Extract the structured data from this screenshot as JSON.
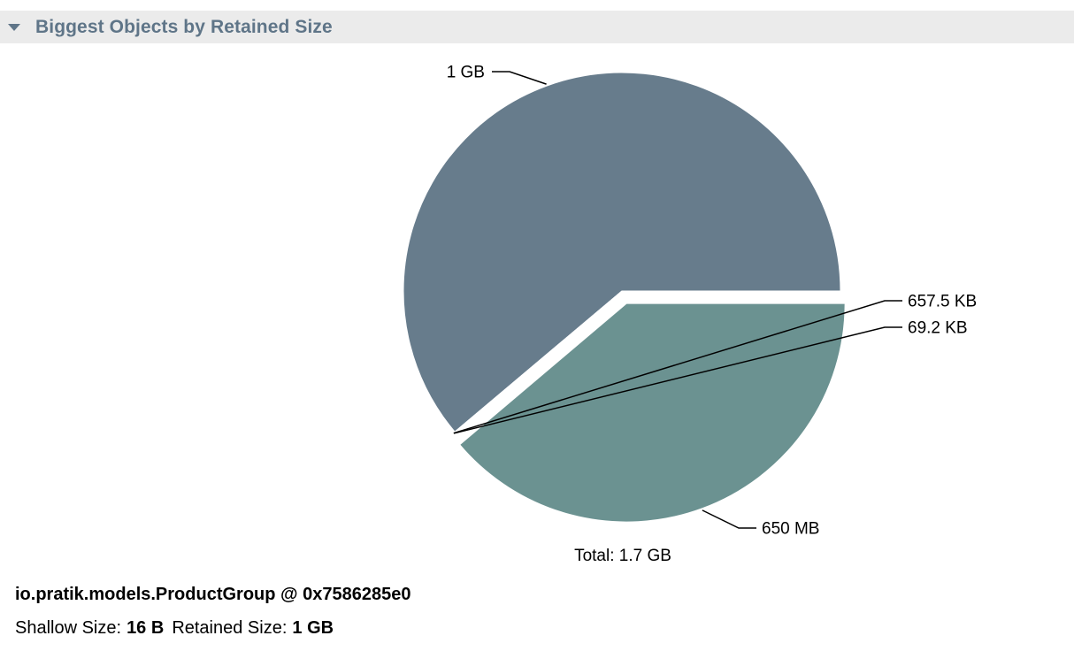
{
  "section": {
    "title": "Biggest Objects by Retained Size",
    "expanded": true,
    "toggle_icon": "triangle-down-icon"
  },
  "chart_data": {
    "type": "pie",
    "slices": [
      {
        "label": "1 GB",
        "value": 1024,
        "unit": "MB",
        "color": "#677c8c"
      },
      {
        "label": "657.5 KB",
        "value": 0.642,
        "unit": "MB",
        "color": "#9aa8b2"
      },
      {
        "label": "69.2 KB",
        "value": 0.068,
        "unit": "MB",
        "color": "#b7c4c6"
      },
      {
        "label": "650 MB",
        "value": 650,
        "unit": "MB",
        "color": "#6b9291"
      }
    ],
    "exploded_slice": "650 MB",
    "total_label": "Total: 1.7 GB"
  },
  "object": {
    "name": "io.pratik.models.ProductGroup @ 0x7586285e0",
    "shallow_label": "Shallow Size:",
    "shallow_value": "16 B",
    "retained_label": "Retained Size:",
    "retained_value": "1 GB"
  }
}
